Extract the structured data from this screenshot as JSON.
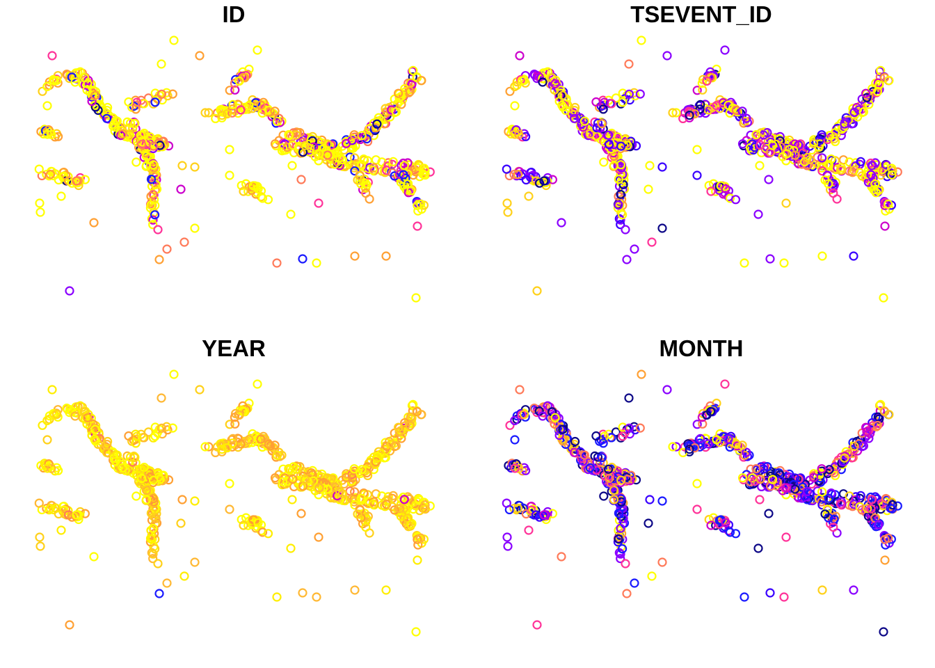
{
  "chart_data": [
    {
      "type": "scatter",
      "title": "ID",
      "palette": [
        "#0d0887",
        "#1a1aff",
        "#8a00ff",
        "#cc00cc",
        "#ff3399",
        "#ff7a59",
        "#ffa033",
        "#ffd11a",
        "#ffff00"
      ],
      "weights": [
        1,
        2,
        1,
        3,
        2,
        3,
        6,
        4,
        18
      ]
    },
    {
      "type": "scatter",
      "title": "TSEVENT_ID",
      "palette": [
        "#0d0887",
        "#3a00ff",
        "#8a00ff",
        "#cc00cc",
        "#ff3399",
        "#ff7a59",
        "#ffa033",
        "#ffd11a",
        "#ffff00"
      ],
      "weights": [
        2,
        4,
        10,
        3,
        3,
        2,
        2,
        3,
        14
      ]
    },
    {
      "type": "scatter",
      "title": "YEAR",
      "palette": [
        "#1a1aff",
        "#cc00cc",
        "#ff7a59",
        "#ffa033",
        "#ffb833",
        "#ffd11a",
        "#ffee00",
        "#ffff00"
      ],
      "weights": [
        0.2,
        0.2,
        0.5,
        8,
        6,
        8,
        8,
        10
      ]
    },
    {
      "type": "scatter",
      "title": "MONTH",
      "palette": [
        "#0d0887",
        "#1a1aff",
        "#3a00ff",
        "#8a00ff",
        "#cc00cc",
        "#ff3399",
        "#ff7a59",
        "#ffa033",
        "#ffd11a",
        "#ffff00"
      ],
      "weights": [
        7,
        7,
        4,
        6,
        3,
        4,
        6,
        2,
        3,
        4
      ]
    }
  ]
}
